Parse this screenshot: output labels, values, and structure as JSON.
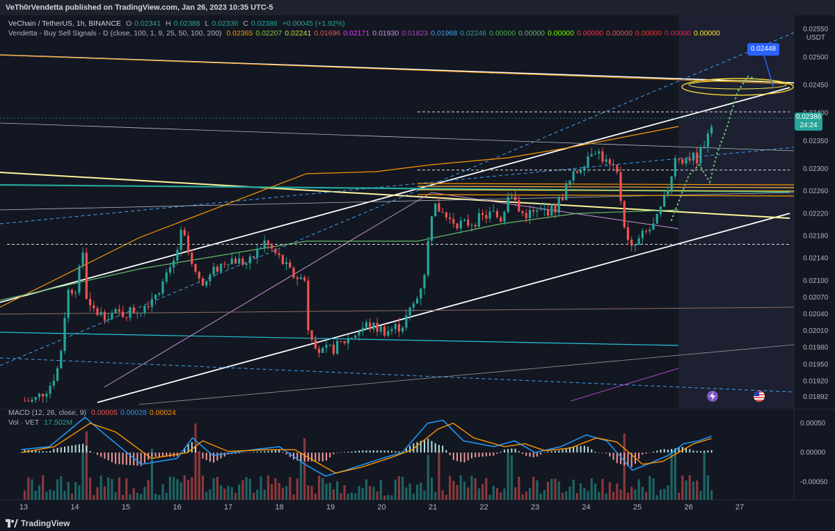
{
  "header": {
    "publisher_line": "VeTh0rVendetta published on TradingView.com, Jan 26, 2023 10:35 UTC-5"
  },
  "legend": {
    "symbol_line": {
      "name": "VeChain / TetherUS, 1h, BINANCE",
      "o_label": "O",
      "o": "0.02341",
      "h_label": "H",
      "h": "0.02388",
      "l_label": "L",
      "l": "0.02336",
      "c_label": "C",
      "c": "0.02386",
      "change": "+0.00045 (+1.92%)"
    },
    "indicator_line": {
      "name": "Vendetta - Buy Sell Signals - D (close, 100, 1, 9, 25, 50, 100, 200)",
      "values": [
        {
          "text": "0.02365",
          "color": "#ff9800"
        },
        {
          "text": "0.02207",
          "color": "#8bc34a"
        },
        {
          "text": "0.02241",
          "color": "#cddc39"
        },
        {
          "text": "0.01696",
          "color": "#ef5350"
        },
        {
          "text": "0.02171",
          "color": "#e040fb"
        },
        {
          "text": "0.01930",
          "color": "#ce93d8"
        },
        {
          "text": "0.01823",
          "color": "#ab47bc"
        },
        {
          "text": "0.01968",
          "color": "#42a5f5"
        },
        {
          "text": "0.02246",
          "color": "#26a69a"
        },
        {
          "text": "0.00000",
          "color": "#4caf50"
        },
        {
          "text": "0.00000",
          "color": "#66bb6a"
        },
        {
          "text": "0.00000",
          "color": "#76ff03"
        },
        {
          "text": "0.00000",
          "color": "#f23645"
        },
        {
          "text": "0.00000",
          "color": "#ef5350"
        },
        {
          "text": "0.00000",
          "color": "#e53935"
        },
        {
          "text": "0.00000",
          "color": "#ff1744"
        },
        {
          "text": "0.00000",
          "color": "#ffeb3b"
        }
      ]
    },
    "macd_line": {
      "name": "MACD (12, 26, close, 9)",
      "values": [
        {
          "text": "0.00005",
          "color": "#ef5350"
        },
        {
          "text": "0.00028",
          "color": "#2196f3"
        },
        {
          "text": "0.00024",
          "color": "#ff9800"
        }
      ]
    },
    "vol_line": {
      "name": "Vol · VET",
      "value": "17.502M",
      "color": "#26a69a"
    }
  },
  "axis": {
    "unit": "USDT",
    "price_ticks": [
      "0.02550",
      "0.02500",
      "0.02450",
      "0.02400",
      "0.02350",
      "0.02300",
      "0.02260",
      "0.02220",
      "0.02180",
      "0.02140",
      "0.02100",
      "0.02070",
      "0.02040",
      "0.02010",
      "0.01980",
      "0.01950",
      "0.01920",
      "0.01892"
    ],
    "macd_ticks": [
      "0.00050",
      "0.00000",
      "-0.00050"
    ],
    "time_ticks": [
      "13",
      "14",
      "15",
      "16",
      "17",
      "18",
      "19",
      "20",
      "21",
      "22",
      "23",
      "24",
      "25",
      "26",
      "27"
    ]
  },
  "annotations": {
    "target_label": "0.02448",
    "last_price": "0.02386",
    "countdown": "24:24"
  },
  "footer": {
    "brand": "TradingView"
  },
  "icons": {
    "flash": "lightning-icon",
    "flag": "us-flag-icon",
    "logo": "tradingview-logo-icon"
  },
  "colors": {
    "up": "#26a69a",
    "down": "#ef5350",
    "macd": "#2196f3",
    "signal": "#ff9800",
    "accent": "#2962ff"
  },
  "chart_data": {
    "type": "candlestick",
    "title": "VeChain / TetherUS, 1h, BINANCE",
    "ylabel": "USDT",
    "ylim": [
      0.01872,
      0.02575
    ],
    "x_range_days": [
      "13",
      "27"
    ],
    "path": [
      [
        12.95,
        0.01885
      ],
      [
        13.2,
        0.01885
      ],
      [
        13.5,
        0.0191
      ],
      [
        13.7,
        0.0195
      ],
      [
        13.85,
        0.0208
      ],
      [
        14.05,
        0.0209
      ],
      [
        14.15,
        0.0216
      ],
      [
        14.25,
        0.0205
      ],
      [
        14.5,
        0.0204
      ],
      [
        14.9,
        0.0204
      ],
      [
        15.3,
        0.0205
      ],
      [
        15.6,
        0.0208
      ],
      [
        15.9,
        0.0212
      ],
      [
        16.1,
        0.0219
      ],
      [
        16.3,
        0.0212
      ],
      [
        16.5,
        0.0209
      ],
      [
        16.75,
        0.0212
      ],
      [
        17.0,
        0.0214
      ],
      [
        17.4,
        0.0213
      ],
      [
        17.7,
        0.0217
      ],
      [
        18.0,
        0.0214
      ],
      [
        18.25,
        0.0211
      ],
      [
        18.5,
        0.021
      ],
      [
        18.55,
        0.0202
      ],
      [
        18.8,
        0.0197
      ],
      [
        19.1,
        0.0198
      ],
      [
        19.4,
        0.02
      ],
      [
        19.7,
        0.0202
      ],
      [
        20.1,
        0.0201
      ],
      [
        20.4,
        0.0202
      ],
      [
        20.7,
        0.0207
      ],
      [
        20.85,
        0.0212
      ],
      [
        21.0,
        0.0224
      ],
      [
        21.3,
        0.0221
      ],
      [
        21.6,
        0.022
      ],
      [
        21.9,
        0.0221
      ],
      [
        22.15,
        0.0222
      ],
      [
        22.35,
        0.0221
      ],
      [
        22.5,
        0.0227
      ],
      [
        22.7,
        0.0222
      ],
      [
        23.0,
        0.0222
      ],
      [
        23.4,
        0.0223
      ],
      [
        23.7,
        0.0228
      ],
      [
        24.0,
        0.0232
      ],
      [
        24.15,
        0.0234
      ],
      [
        24.4,
        0.0231
      ],
      [
        24.6,
        0.0229
      ],
      [
        24.75,
        0.022
      ],
      [
        24.85,
        0.0215
      ],
      [
        25.1,
        0.0218
      ],
      [
        25.35,
        0.022
      ],
      [
        25.55,
        0.0225
      ],
      [
        25.75,
        0.0232
      ],
      [
        25.95,
        0.0232
      ],
      [
        26.2,
        0.0232
      ],
      [
        26.45,
        0.02386
      ]
    ],
    "volume_spikes": [
      14.2,
      15.5,
      16.4,
      18.45,
      20.9,
      21.1,
      22.5,
      24.75,
      25.7,
      26.3
    ],
    "macd_path": [
      [
        12.95,
        5e-05
      ],
      [
        13.5,
        0.0001
      ],
      [
        14.2,
        0.0006
      ],
      [
        14.6,
        0.0003
      ],
      [
        15.3,
        -0.0002
      ],
      [
        16.0,
        -0.0001
      ],
      [
        16.3,
        0.00025
      ],
      [
        16.7,
        -5e-05
      ],
      [
        17.5,
        5e-05
      ],
      [
        18.0,
        0.0001
      ],
      [
        18.5,
        -0.0002
      ],
      [
        18.9,
        -0.0004
      ],
      [
        19.3,
        -0.0003
      ],
      [
        20.0,
        -0.0001
      ],
      [
        20.4,
        0.0
      ],
      [
        20.9,
        0.0005
      ],
      [
        21.2,
        0.00055
      ],
      [
        21.6,
        0.0002
      ],
      [
        22.2,
        0.0001
      ],
      [
        22.6,
        0.0002
      ],
      [
        23.0,
        0.0
      ],
      [
        23.5,
        0.0001
      ],
      [
        24.0,
        0.0003
      ],
      [
        24.4,
        0.0002
      ],
      [
        24.9,
        -0.0003
      ],
      [
        25.2,
        -0.0002
      ],
      [
        25.6,
        -5e-05
      ],
      [
        25.9,
        0.00015
      ],
      [
        26.2,
        0.0002
      ],
      [
        26.45,
        0.00028
      ]
    ],
    "signal_path": [
      [
        12.95,
        0.0
      ],
      [
        13.6,
        0.0001
      ],
      [
        14.3,
        0.0005
      ],
      [
        14.8,
        0.00035
      ],
      [
        15.5,
        -0.0001
      ],
      [
        16.2,
        0.0
      ],
      [
        16.5,
        0.0002
      ],
      [
        17.0,
        2e-05
      ],
      [
        17.8,
        5e-05
      ],
      [
        18.3,
        5e-05
      ],
      [
        18.7,
        -0.00015
      ],
      [
        19.1,
        -0.00035
      ],
      [
        19.6,
        -0.00025
      ],
      [
        20.2,
        -8e-05
      ],
      [
        20.6,
        5e-05
      ],
      [
        21.1,
        0.0004
      ],
      [
        21.4,
        0.0005
      ],
      [
        21.8,
        0.00025
      ],
      [
        22.4,
        0.0001
      ],
      [
        22.8,
        0.00015
      ],
      [
        23.2,
        3e-05
      ],
      [
        23.7,
        8e-05
      ],
      [
        24.2,
        0.00025
      ],
      [
        24.6,
        0.00018
      ],
      [
        25.1,
        -0.0002
      ],
      [
        25.5,
        -0.00015
      ],
      [
        25.8,
        0.0
      ],
      [
        26.1,
        0.00015
      ],
      [
        26.45,
        0.00024
      ]
    ],
    "horizontal_levels": [
      0.02298,
      0.02165,
      0.02402
    ],
    "macd_ylim": [
      -0.00072,
      0.0007
    ],
    "grid": false,
    "legend": "top-left"
  }
}
